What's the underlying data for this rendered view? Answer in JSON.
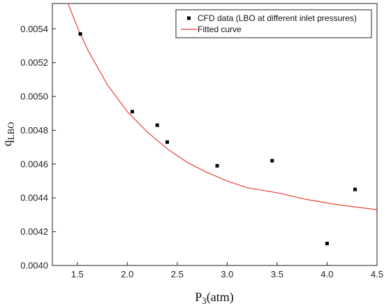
{
  "chart_data": {
    "type": "scatter",
    "x_axis": {
      "label_main": "P",
      "label_sub": "3",
      "label_unit": "(atm)",
      "range": [
        1.25,
        4.5
      ],
      "ticks": [
        1.5,
        2.0,
        2.5,
        3.0,
        3.5,
        4.0,
        4.5
      ],
      "tick_labels": [
        "1.5",
        "2.0",
        "2.5",
        "3.0",
        "3.5",
        "4.0",
        "4.5"
      ]
    },
    "y_axis": {
      "label_main": "q",
      "label_sub": "LBO",
      "range": [
        0.004,
        0.00555
      ],
      "ticks": [
        0.004,
        0.0042,
        0.0044,
        0.0046,
        0.0048,
        0.005,
        0.0052,
        0.0054
      ],
      "tick_labels": [
        "0.0040",
        "0.0042",
        "0.0044",
        "0.0046",
        "0.0048",
        "0.0050",
        "0.0052",
        "0.0054"
      ]
    },
    "series": [
      {
        "name": "CFD data  (LBO at different inlet pressures)",
        "kind": "scatter",
        "color": "#000000",
        "points": [
          {
            "x": 1.53,
            "y": 0.00537
          },
          {
            "x": 2.05,
            "y": 0.00491
          },
          {
            "x": 2.3,
            "y": 0.00483
          },
          {
            "x": 2.4,
            "y": 0.00473
          },
          {
            "x": 2.9,
            "y": 0.00459
          },
          {
            "x": 3.45,
            "y": 0.00462
          },
          {
            "x": 4.0,
            "y": 0.00413
          },
          {
            "x": 4.28,
            "y": 0.00445
          }
        ]
      },
      {
        "name": "Fitted curve",
        "kind": "line",
        "color": "#e8403a",
        "points": [
          {
            "x": 1.4,
            "y": 0.00556
          },
          {
            "x": 1.5,
            "y": 0.00541
          },
          {
            "x": 1.6,
            "y": 0.00528
          },
          {
            "x": 1.8,
            "y": 0.00507
          },
          {
            "x": 2.0,
            "y": 0.00491
          },
          {
            "x": 2.2,
            "y": 0.00479
          },
          {
            "x": 2.4,
            "y": 0.00469
          },
          {
            "x": 2.6,
            "y": 0.00461
          },
          {
            "x": 2.8,
            "y": 0.00455
          },
          {
            "x": 3.0,
            "y": 0.0045
          },
          {
            "x": 3.2,
            "y": 0.00446
          },
          {
            "x": 3.5,
            "y": 0.00443
          },
          {
            "x": 3.8,
            "y": 0.00439
          },
          {
            "x": 4.1,
            "y": 0.00436
          },
          {
            "x": 4.5,
            "y": 0.00433
          }
        ]
      }
    ],
    "legend": {
      "position": "top-right"
    },
    "grid": false
  }
}
